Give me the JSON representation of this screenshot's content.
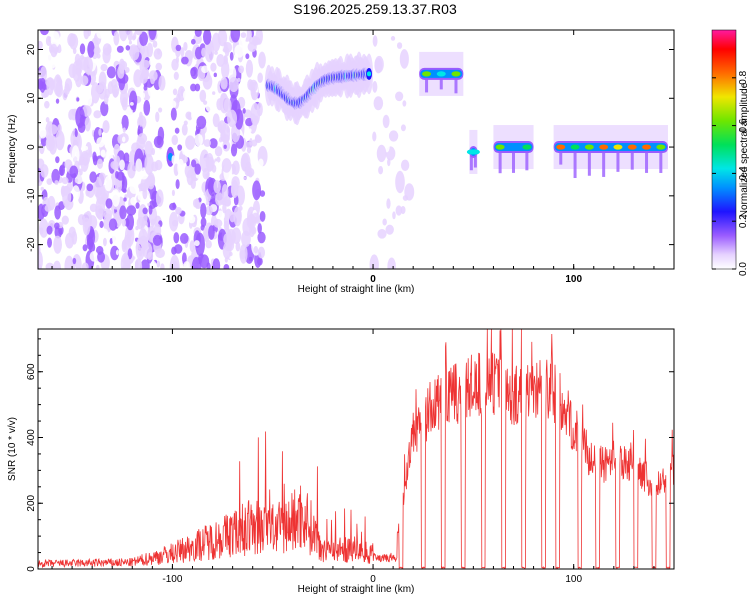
{
  "title": "S196.2025.259.13.37.R03",
  "chart_data": [
    {
      "type": "heatmap",
      "title": "S196.2025.259.13.37.R03",
      "xlabel": "Height of straight line (km)",
      "ylabel": "Frequency (Hz)",
      "xlim": [
        -167,
        150
      ],
      "ylim": [
        -25,
        24
      ],
      "xticks": [
        -100,
        0,
        100
      ],
      "yticks": [
        -20,
        -10,
        0,
        10,
        20
      ],
      "colorbar": {
        "label": "Normalized spectral amplitude",
        "range": [
          0.0,
          1.0
        ],
        "ticks": [
          "0.0",
          "0.2",
          "0.4",
          "0.6",
          "0.8"
        ]
      },
      "segments": [
        {
          "x0": -167,
          "x1": -105,
          "kind": "noise"
        },
        {
          "x0": -102,
          "x1": -100,
          "kind": "peak",
          "freq": -2,
          "amp": 0.35
        },
        {
          "x0": -100,
          "x1": -55,
          "kind": "noise"
        },
        {
          "x0": -52,
          "x1": -2,
          "kind": "ridge",
          "freq_start": 13,
          "freq_end": 15,
          "dip_at": -38,
          "dip_freq": 9,
          "amp": 0.6
        },
        {
          "x0": 0,
          "x1": 20,
          "kind": "noise_light"
        },
        {
          "x0": 23,
          "x1": 45,
          "kind": "band",
          "freq": 15,
          "amp": 0.85
        },
        {
          "x0": 48,
          "x1": 52,
          "kind": "band",
          "freq": -1,
          "amp": 0.5
        },
        {
          "x0": 60,
          "x1": 80,
          "kind": "band",
          "freq": 0,
          "amp": 0.65
        },
        {
          "x0": 90,
          "x1": 147,
          "kind": "band",
          "freq": 0,
          "amp": 0.95
        }
      ]
    },
    {
      "type": "line",
      "xlabel": "Height of straight line (km)",
      "ylabel": "SNR (10 * v/v)",
      "xlim": [
        -167,
        150
      ],
      "ylim": [
        0,
        730
      ],
      "xticks": [
        -100,
        0,
        100
      ],
      "yticks": [
        0,
        200,
        400,
        600
      ],
      "color": "#ee3333",
      "envelope_x": [
        -167,
        -120,
        -100,
        -80,
        -60,
        -45,
        -35,
        -25,
        -10,
        0,
        10,
        20,
        30,
        40,
        50,
        60,
        70,
        80,
        90,
        100,
        110,
        120,
        130,
        140,
        150
      ],
      "envelope_y": [
        20,
        25,
        60,
        110,
        160,
        150,
        210,
        80,
        70,
        60,
        30,
        420,
        510,
        540,
        570,
        580,
        540,
        560,
        560,
        440,
        330,
        320,
        340,
        250,
        310
      ],
      "dropouts": [
        14,
        25,
        35,
        45,
        55,
        65,
        75,
        85,
        92,
        103,
        112,
        122,
        131,
        140,
        147
      ]
    }
  ]
}
